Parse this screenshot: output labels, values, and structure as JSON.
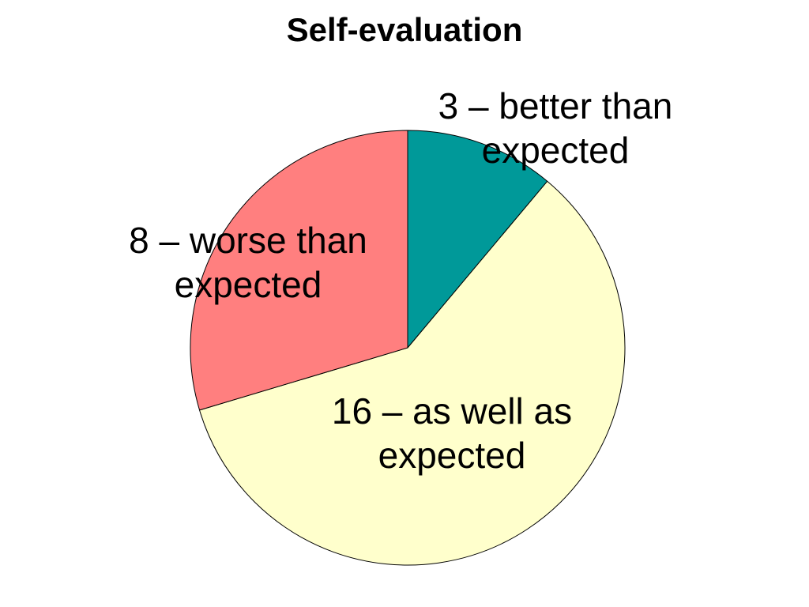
{
  "chart_data": {
    "type": "pie",
    "title": "Self-evaluation",
    "values": [
      3,
      16,
      8
    ],
    "value_labels": [
      "3 – better than expected",
      "16 – as well as expected",
      "8 – worse than expected"
    ],
    "colors": [
      "#009999",
      "#ffffcc",
      "#ff7f7f"
    ]
  }
}
